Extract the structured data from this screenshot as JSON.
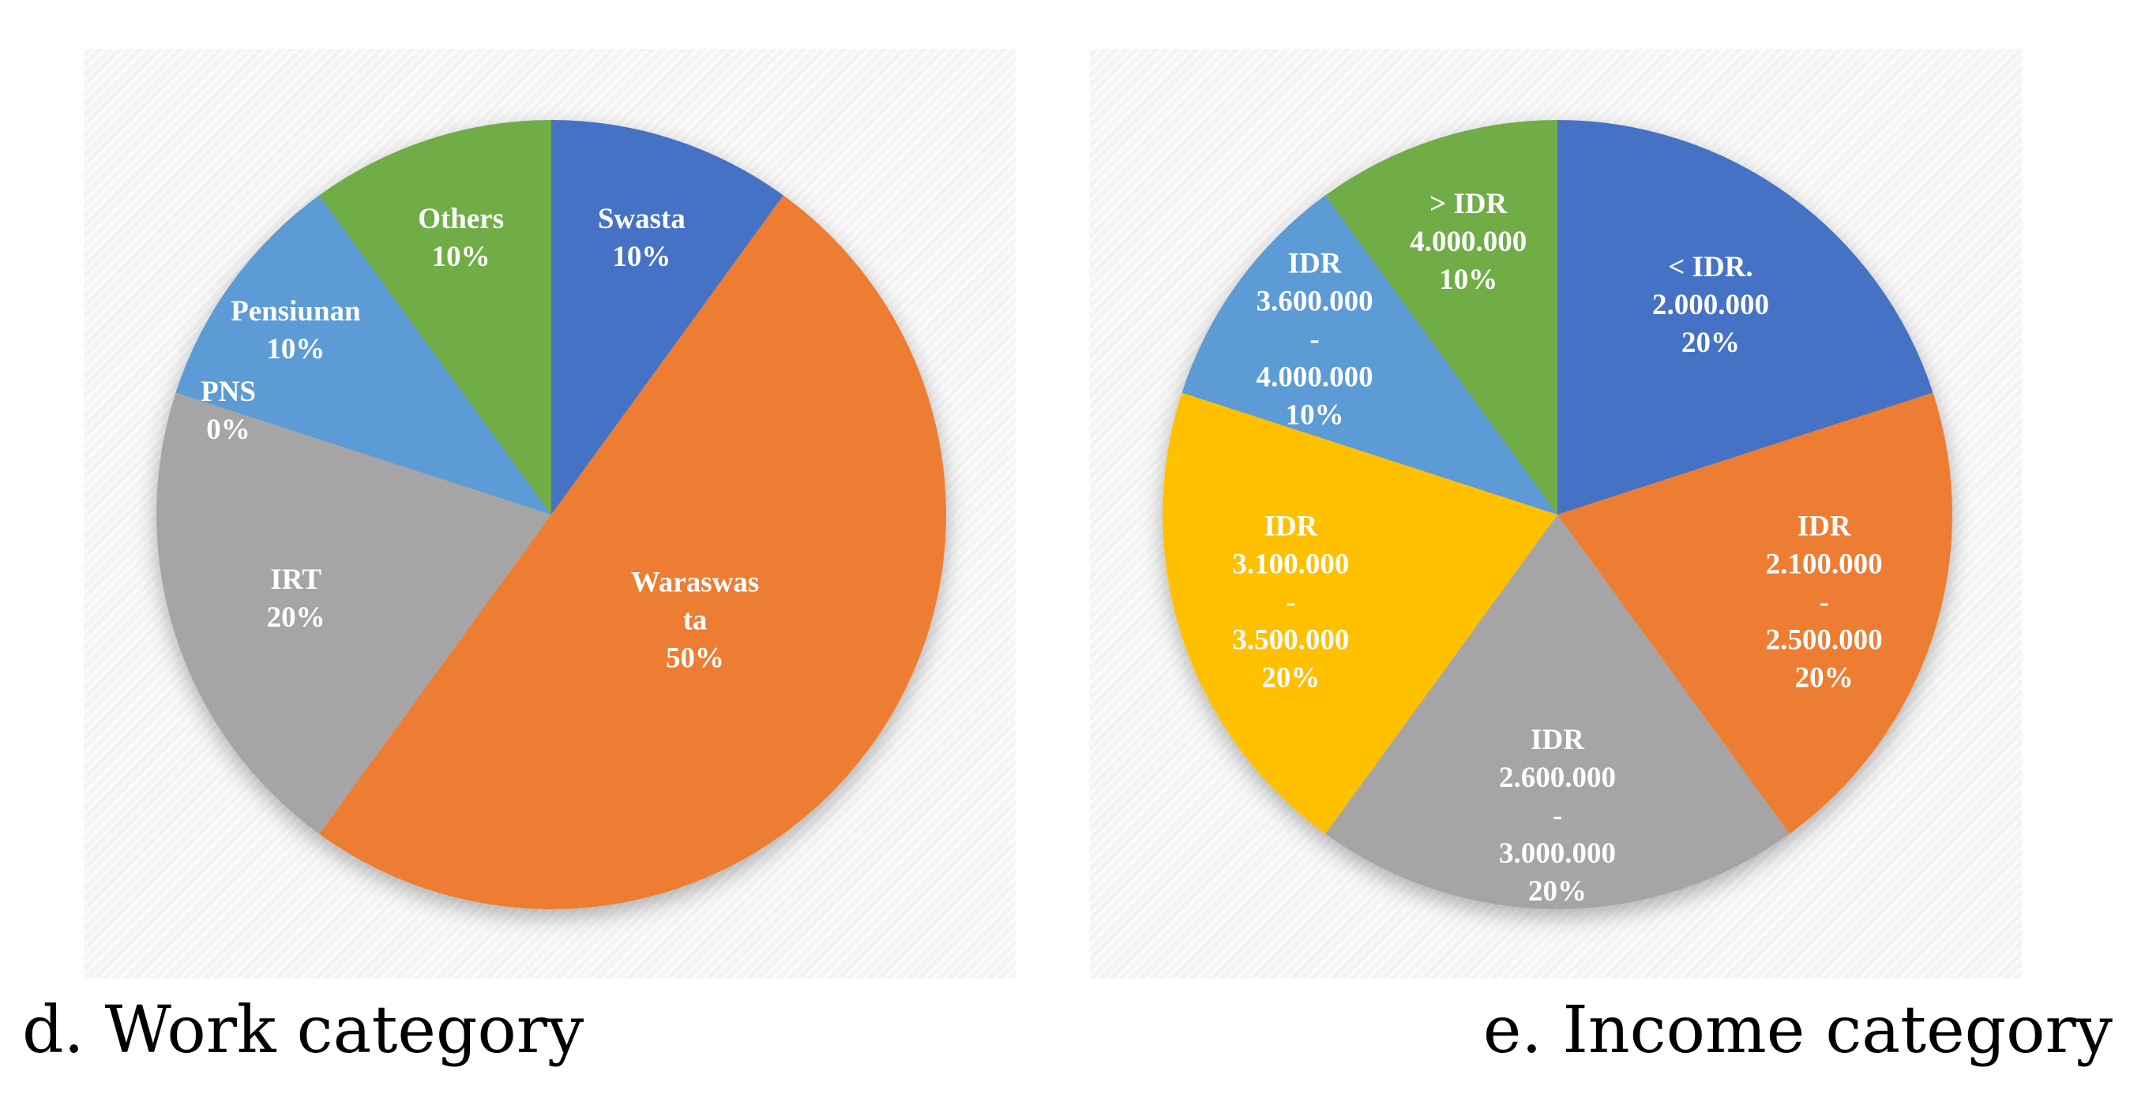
{
  "chart_data": [
    {
      "type": "pie",
      "caption": "d. Work category",
      "slices": [
        {
          "lines": [
            "Swasta",
            "10%"
          ],
          "value": 10,
          "color": "#4472c4"
        },
        {
          "lines": [
            "Waraswas",
            "ta",
            "50%"
          ],
          "value": 50,
          "color": "#ed7d31"
        },
        {
          "lines": [
            "IRT",
            "20%"
          ],
          "value": 20,
          "color": "#a5a5a5"
        },
        {
          "lines": [
            "PNS",
            "0%"
          ],
          "value": 0,
          "color": "#ffc000"
        },
        {
          "lines": [
            "Pensiunan",
            "10%"
          ],
          "value": 10,
          "color": "#5b9bd5"
        },
        {
          "lines": [
            "Others",
            "10%"
          ],
          "value": 10,
          "color": "#70ad47"
        }
      ]
    },
    {
      "type": "pie",
      "caption": "e. Income category",
      "slices": [
        {
          "lines": [
            "< IDR.",
            "2.000.000",
            "20%"
          ],
          "value": 20,
          "color": "#4472c4"
        },
        {
          "lines": [
            "IDR",
            "2.100.000",
            "-",
            "2.500.000",
            "20%"
          ],
          "value": 20,
          "color": "#ed7d31"
        },
        {
          "lines": [
            "IDR",
            "2.600.000",
            "-",
            "3.000.000",
            "20%"
          ],
          "value": 20,
          "color": "#a5a5a5"
        },
        {
          "lines": [
            "IDR",
            "3.100.000",
            "-",
            "3.500.000",
            "20%"
          ],
          "value": 20,
          "color": "#ffc000"
        },
        {
          "lines": [
            "IDR",
            "3.600.000",
            "-",
            "4.000.000",
            "10%"
          ],
          "value": 10,
          "color": "#5b9bd5"
        },
        {
          "lines": [
            "> IDR",
            "4.000.000",
            "10%"
          ],
          "value": 10,
          "color": "#70ad47"
        }
      ]
    }
  ]
}
